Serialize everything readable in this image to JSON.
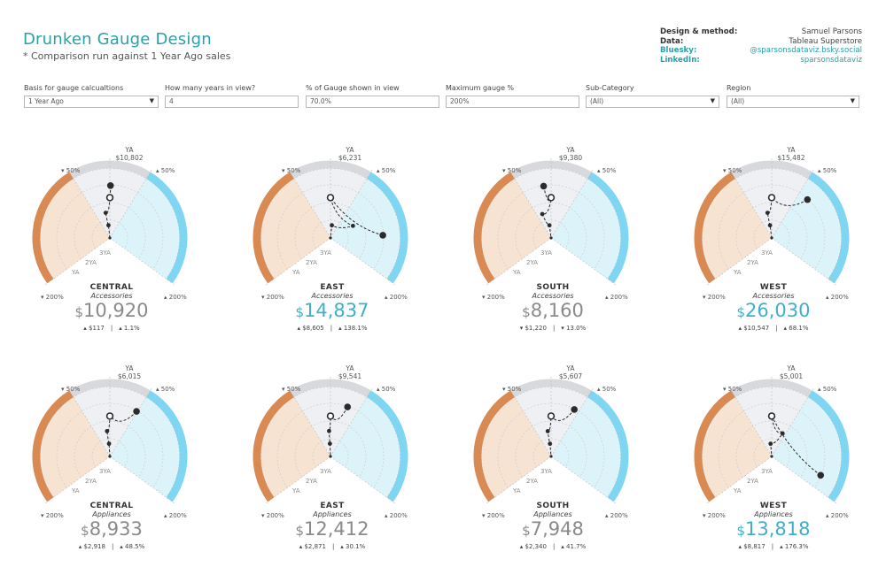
{
  "header": {
    "title": "Drunken Gauge Design",
    "subtitle": "* Comparison run against 1 Year Ago sales"
  },
  "credits": [
    {
      "label": "Design & method:",
      "value": "Samuel Parsons"
    },
    {
      "label": "Data:",
      "value": "Tableau Superstore"
    },
    {
      "label": "Bluesky:",
      "value": "@sparsonsdataviz.bsky.social"
    },
    {
      "label": "LinkedIn:",
      "value": "sparsonsdataviz"
    }
  ],
  "filters": [
    {
      "label": "Basis for gauge calcualtions",
      "value": "1 Year Ago",
      "dropdown": true
    },
    {
      "label": "How many years in view?",
      "value": "4",
      "dropdown": false
    },
    {
      "label": "% of Gauge shown in view",
      "value": "70.0%",
      "dropdown": false
    },
    {
      "label": "Maximum gauge %",
      "value": "200%",
      "dropdown": false
    },
    {
      "label": "Sub-Category",
      "value": "(All)",
      "dropdown": true
    },
    {
      "label": "Region",
      "value": "(All)",
      "dropdown": true
    }
  ],
  "gauge_labels": {
    "ya": "YA",
    "pct_left": "▾ 50%",
    "pct_right": "▴ 50%",
    "bottom_left": "▾ 200%",
    "bottom_right": "▴ 200%",
    "year_labels": [
      "YA",
      "2YA",
      "3YA"
    ]
  },
  "colors": {
    "decline": "#d88a52",
    "decline_fill": "#f7e3d2",
    "growth": "#7fd6f2",
    "growth_fill": "#ddf3fa",
    "neutral_band": "#d8d9dd",
    "neutral_fill": "#eef0f3",
    "value_positive": "#3fb0c8",
    "value_negative": "#8a8a8a"
  },
  "chart_data": {
    "type": "radial gauge",
    "scale": {
      "min_pct": -200,
      "max_pct": 200,
      "gauge_shown_pct": 70,
      "years_in_view": 4,
      "basis": "1 Year Ago"
    },
    "gauges": [
      {
        "region": "CENTRAL",
        "sub_category": "Accessories",
        "ya_value": "$10,802",
        "value": "10,920",
        "delta_abs": "▴ $117",
        "delta_pct": "▴ 1.1%",
        "positive": false,
        "points": [
          {
            "year": "Current",
            "pct": 1.1
          },
          {
            "year": "YA",
            "pct": 0
          },
          {
            "year": "2YA",
            "pct": -15
          },
          {
            "year": "3YA",
            "pct": -10
          }
        ]
      },
      {
        "region": "EAST",
        "sub_category": "Accessories",
        "ya_value": "$6,231",
        "value": "14,837",
        "delta_abs": "▴ $8,605",
        "delta_pct": "▴ 138.1%",
        "positive": true,
        "points": [
          {
            "year": "Current",
            "pct": 138.1
          },
          {
            "year": "YA",
            "pct": 0
          },
          {
            "year": "2YA",
            "pct": 98
          },
          {
            "year": "3YA",
            "pct": 10
          }
        ]
      },
      {
        "region": "SOUTH",
        "sub_category": "Accessories",
        "ya_value": "$9,380",
        "value": "8,160",
        "delta_abs": "▾ $1,220",
        "delta_pct": "▾ 13.0%",
        "positive": false,
        "points": [
          {
            "year": "Current",
            "pct": -13
          },
          {
            "year": "YA",
            "pct": 0
          },
          {
            "year": "2YA",
            "pct": -32
          },
          {
            "year": "3YA",
            "pct": -12
          }
        ]
      },
      {
        "region": "WEST",
        "sub_category": "Accessories",
        "ya_value": "$15,482",
        "value": "26,030",
        "delta_abs": "▴ $10,547",
        "delta_pct": "▴ 68.1%",
        "positive": true,
        "points": [
          {
            "year": "Current",
            "pct": 68.1
          },
          {
            "year": "YA",
            "pct": 0
          },
          {
            "year": "2YA",
            "pct": -15
          },
          {
            "year": "3YA",
            "pct": -12
          }
        ]
      },
      {
        "region": "CENTRAL",
        "sub_category": "Appliances",
        "ya_value": "$6,015",
        "value": "8,933",
        "delta_abs": "▴ $2,918",
        "delta_pct": "▴ 48.5%",
        "positive": false,
        "points": [
          {
            "year": "Current",
            "pct": 48.5
          },
          {
            "year": "YA",
            "pct": 0
          },
          {
            "year": "2YA",
            "pct": -10
          },
          {
            "year": "3YA",
            "pct": -6
          }
        ]
      },
      {
        "region": "EAST",
        "sub_category": "Appliances",
        "ya_value": "$9,541",
        "value": "12,412",
        "delta_abs": "▴ $2,871",
        "delta_pct": "▴ 30.1%",
        "positive": false,
        "points": [
          {
            "year": "Current",
            "pct": 30.1
          },
          {
            "year": "YA",
            "pct": 0
          },
          {
            "year": "2YA",
            "pct": -5
          },
          {
            "year": "3YA",
            "pct": -4
          }
        ]
      },
      {
        "region": "SOUTH",
        "sub_category": "Appliances",
        "ya_value": "$5,607",
        "value": "7,948",
        "delta_abs": "▴ $2,340",
        "delta_pct": "▴ 41.7%",
        "positive": false,
        "points": [
          {
            "year": "Current",
            "pct": 41.7
          },
          {
            "year": "YA",
            "pct": 0
          },
          {
            "year": "2YA",
            "pct": -12
          },
          {
            "year": "3YA",
            "pct": -8
          }
        ]
      },
      {
        "region": "WEST",
        "sub_category": "Appliances",
        "ya_value": "$5,001",
        "value": "13,818",
        "delta_abs": "▴ $8,817",
        "delta_pct": "▴ 176.3%",
        "positive": true,
        "points": [
          {
            "year": "Current",
            "pct": 176.3
          },
          {
            "year": "YA",
            "pct": 0
          },
          {
            "year": "2YA",
            "pct": 40
          },
          {
            "year": "3YA",
            "pct": -8
          }
        ]
      }
    ]
  }
}
